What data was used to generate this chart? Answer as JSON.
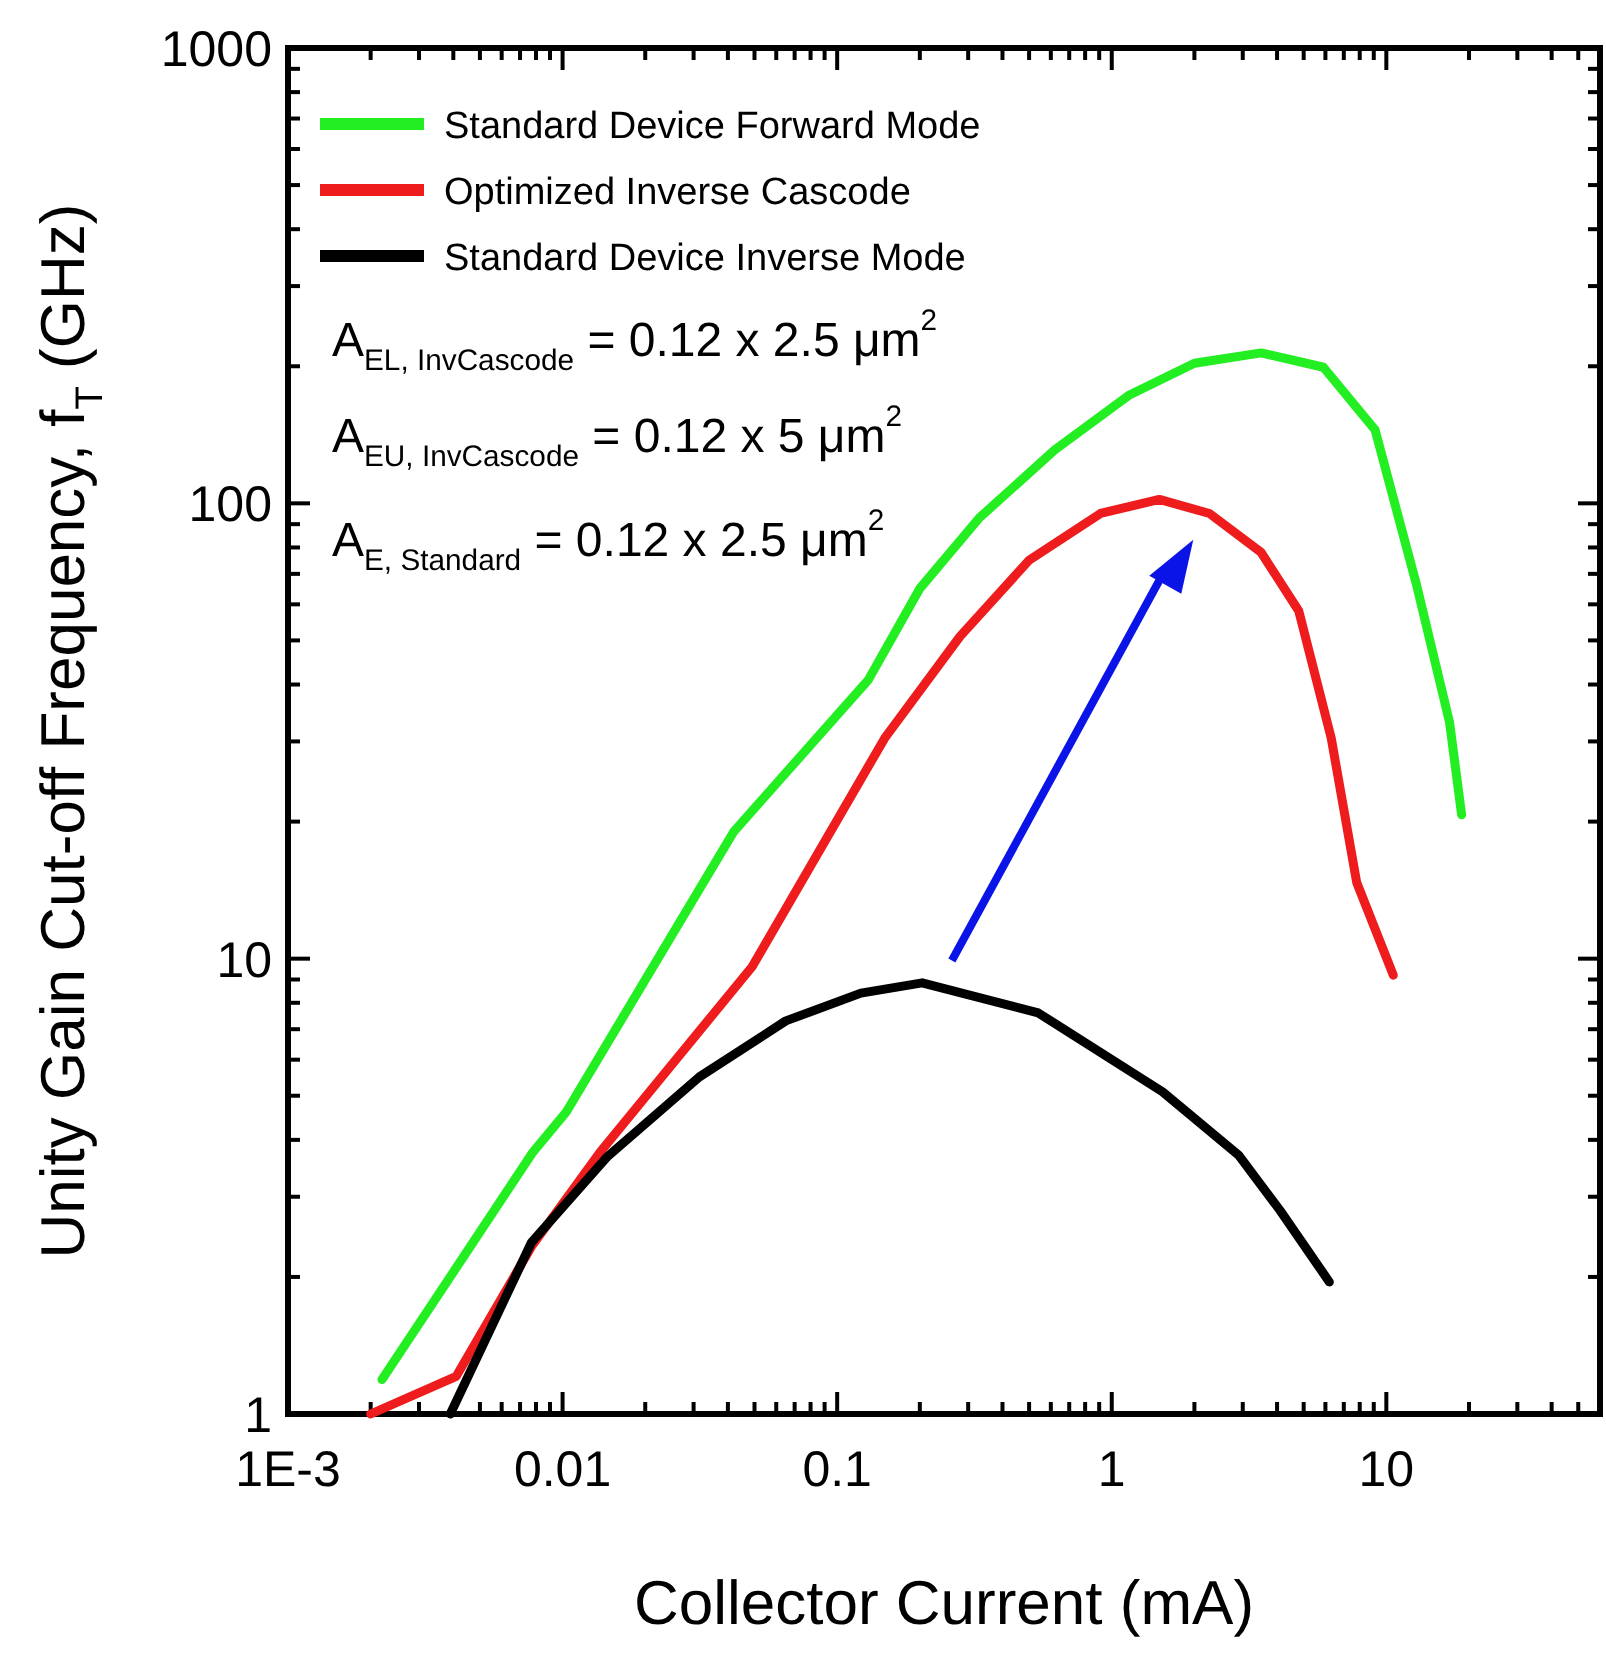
{
  "chart_data": {
    "type": "line",
    "xlabel": "Collector Current (mA)",
    "ylabel": "Unity Gain Cut-off Frequency, f$_{T}$ (GHz)",
    "log": "xy",
    "xlim": [
      0.001,
      60
    ],
    "ylim": [
      1,
      1000
    ],
    "xticks": [
      {
        "value": 0.001,
        "label": "1E-3"
      },
      {
        "value": 0.002,
        "label": null
      },
      {
        "value": 0.003,
        "label": null
      },
      {
        "value": 0.004,
        "label": null
      },
      {
        "value": 0.005,
        "label": null
      },
      {
        "value": 0.006,
        "label": null
      },
      {
        "value": 0.007,
        "label": null
      },
      {
        "value": 0.008,
        "label": null
      },
      {
        "value": 0.009,
        "label": null
      },
      0.01,
      {
        "value": 0.02,
        "label": null
      },
      {
        "value": 0.03,
        "label": null
      },
      {
        "value": 0.04,
        "label": null
      },
      {
        "value": 0.05,
        "label": null
      },
      {
        "value": 0.06,
        "label": null
      },
      {
        "value": 0.07,
        "label": null
      },
      {
        "value": 0.08,
        "label": null
      },
      {
        "value": 0.09,
        "label": null
      },
      0.1,
      {
        "value": 0.2,
        "label": null
      },
      {
        "value": 0.3,
        "label": null
      },
      {
        "value": 0.4,
        "label": null
      },
      {
        "value": 0.5,
        "label": null
      },
      {
        "value": 0.6,
        "label": null
      },
      {
        "value": 0.7,
        "label": null
      },
      {
        "value": 0.8,
        "label": null
      },
      {
        "value": 0.9,
        "label": null
      },
      1,
      {
        "value": 2,
        "label": null
      },
      {
        "value": 3,
        "label": null
      },
      {
        "value": 4,
        "label": null
      },
      {
        "value": 5,
        "label": null
      },
      {
        "value": 6,
        "label": null
      },
      {
        "value": 7,
        "label": null
      },
      {
        "value": 8,
        "label": null
      },
      {
        "value": 9,
        "label": null
      },
      10,
      {
        "value": 20,
        "label": null
      },
      {
        "value": 30,
        "label": null
      },
      {
        "value": 40,
        "label": null
      },
      {
        "value": 50,
        "label": null
      }
    ],
    "yticks": [
      1,
      {
        "value": 2,
        "label": null
      },
      {
        "value": 3,
        "label": null
      },
      {
        "value": 4,
        "label": null
      },
      {
        "value": 5,
        "label": null
      },
      {
        "value": 6,
        "label": null
      },
      {
        "value": 7,
        "label": null
      },
      {
        "value": 8,
        "label": null
      },
      {
        "value": 9,
        "label": null
      },
      10,
      {
        "value": 20,
        "label": null
      },
      {
        "value": 30,
        "label": null
      },
      {
        "value": 40,
        "label": null
      },
      {
        "value": 50,
        "label": null
      },
      {
        "value": 60,
        "label": null
      },
      {
        "value": 70,
        "label": null
      },
      {
        "value": 80,
        "label": null
      },
      {
        "value": 90,
        "label": null
      },
      100,
      {
        "value": 200,
        "label": null
      },
      {
        "value": 300,
        "label": null
      },
      {
        "value": 400,
        "label": null
      },
      {
        "value": 500,
        "label": null
      },
      {
        "value": 600,
        "label": null
      },
      {
        "value": 700,
        "label": null
      },
      {
        "value": 800,
        "label": null
      },
      {
        "value": 900,
        "label": null
      },
      1000
    ],
    "grid": false,
    "legend": "top left",
    "marker": "none",
    "line_style": "solid",
    "annotations": [
      "A$_{EL, InvCascode}$ = 0.12 x 2.5 μm$^{2}$",
      "A$_{EU, InvCascode}$ = 0.12 x 5 μm$^{2}$",
      "A$_{E, Standard}$ = 0.12 x 2.5 μm$^{2}$"
    ],
    "series": [
      {
        "name": "Standard Device Forward Mode",
        "color": "#22ee22",
        "x": [
          0.0022,
          0.0078,
          0.0103,
          0.042,
          0.13,
          0.2,
          0.33,
          0.62,
          1.16,
          2.0,
          3.5,
          5.9,
          9.1,
          12.9,
          17,
          18.8
        ],
        "values": [
          1.19,
          3.76,
          4.6,
          19,
          41,
          65,
          93,
          131,
          173,
          203,
          214,
          199,
          145,
          66,
          33,
          20.7
        ]
      },
      {
        "name": "Optimized Inverse Cascode",
        "color": "#ee1c1c",
        "x": [
          0.002,
          0.0041,
          0.0077,
          0.0137,
          0.049,
          0.149,
          0.28,
          0.5,
          0.91,
          1.49,
          2.27,
          3.5,
          4.8,
          6.3,
          7.8,
          10.6
        ],
        "values": [
          1,
          1.21,
          2.33,
          3.76,
          9.6,
          30.5,
          51,
          75,
          95,
          102,
          95,
          78,
          58,
          30.5,
          14.7,
          9.2
        ]
      },
      {
        "name": "Standard Device Inverse Mode",
        "color": "#000000",
        "x": [
          0.0039,
          0.0077,
          0.0146,
          0.0315,
          0.065,
          0.122,
          0.204,
          0.54,
          1.53,
          2.9,
          4.1,
          6.2
        ],
        "values": [
          1,
          2.38,
          3.68,
          5.5,
          7.3,
          8.4,
          8.85,
          7.6,
          5.1,
          3.7,
          2.8,
          1.95
        ]
      }
    ]
  }
}
